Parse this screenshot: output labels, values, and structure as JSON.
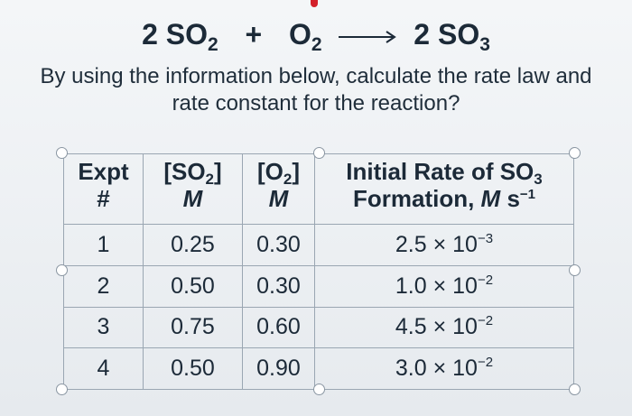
{
  "equation": {
    "coef_reactant": "2 SO",
    "sub_reactant": "2",
    "plus": "+",
    "o2": "O",
    "sub_o2": "2",
    "coef_product": "2 SO",
    "sub_product": "3"
  },
  "question": {
    "line1": "By using the information below, calculate the rate law and",
    "line2": "rate constant for the reaction?"
  },
  "table": {
    "headers": {
      "expt_line1": "Expt",
      "expt_line2": "#",
      "so2_open": "[SO",
      "so2_sub": "2",
      "so2_close": "]",
      "so2_unit": "M",
      "o2_open": "[O",
      "o2_sub": "2",
      "o2_close": "]",
      "o2_unit": "M",
      "rate_line1": "Initial Rate of SO",
      "rate_sub": "3",
      "rate_line2": "Formation, ",
      "rate_unit_M": "M",
      "rate_unit_s": " s",
      "rate_unit_exp": "−1"
    },
    "rows": [
      {
        "expt": "1",
        "so2": "0.25",
        "o2": "0.30",
        "rate_mantissa": "2.5 × 10",
        "rate_exp": "−3"
      },
      {
        "expt": "2",
        "so2": "0.50",
        "o2": "0.30",
        "rate_mantissa": "1.0 × 10",
        "rate_exp": "−2"
      },
      {
        "expt": "3",
        "so2": "0.75",
        "o2": "0.60",
        "rate_mantissa": "4.5 × 10",
        "rate_exp": "−2"
      },
      {
        "expt": "4",
        "so2": "0.50",
        "o2": "0.90",
        "rate_mantissa": "3.0 × 10",
        "rate_exp": "−2"
      }
    ]
  }
}
